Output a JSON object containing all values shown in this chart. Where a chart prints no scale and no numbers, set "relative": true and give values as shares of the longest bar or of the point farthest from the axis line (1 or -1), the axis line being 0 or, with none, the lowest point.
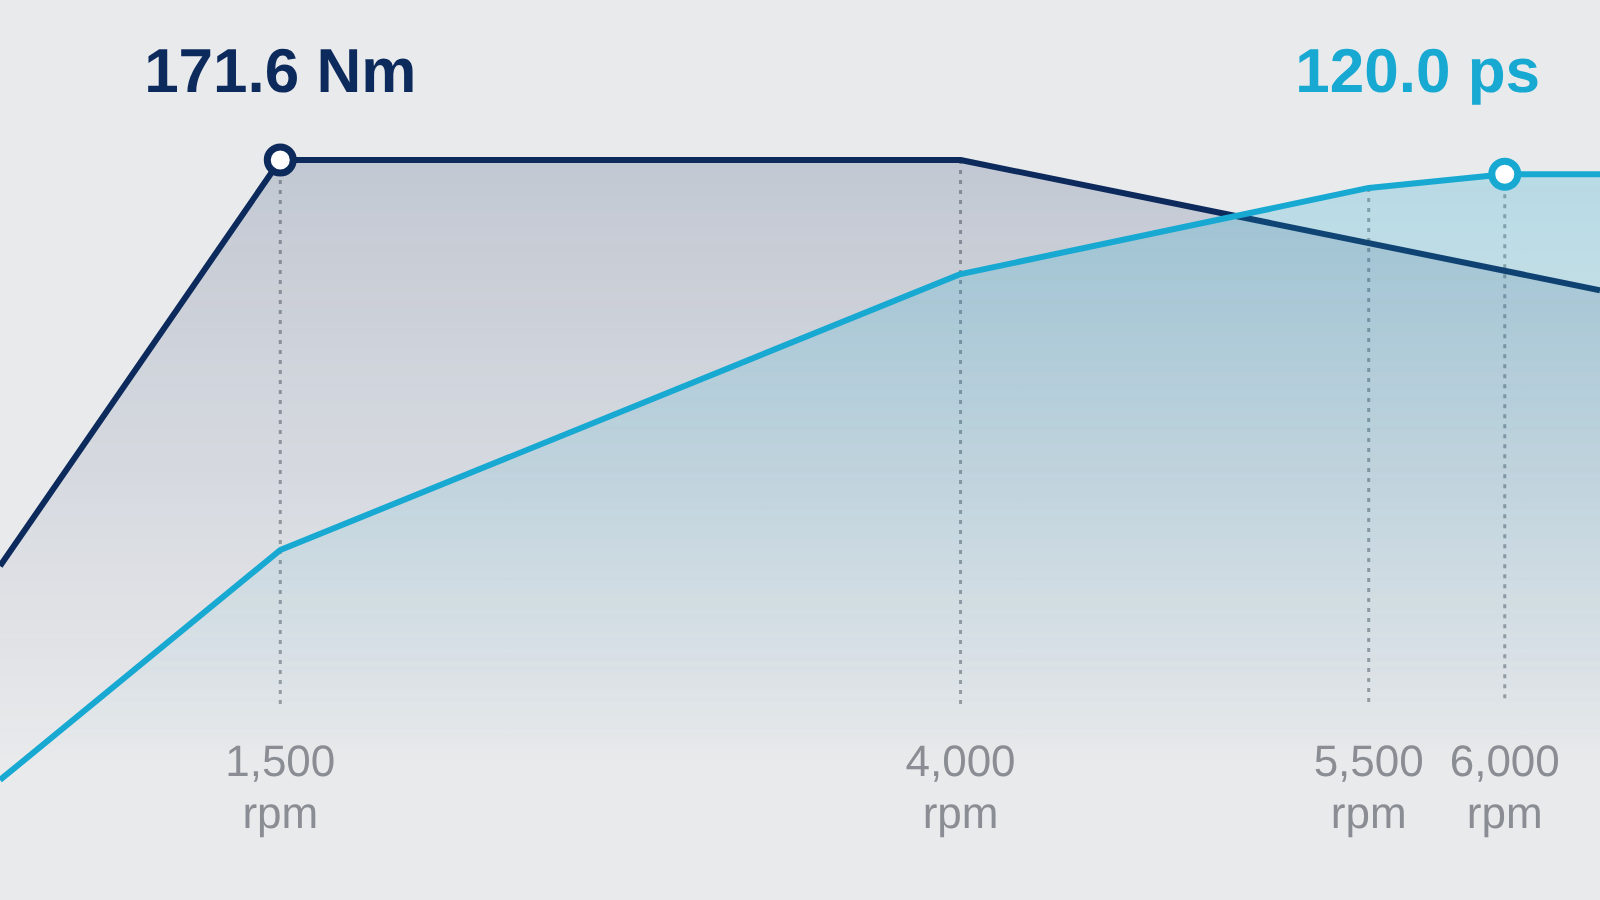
{
  "chart_data": {
    "type": "area",
    "relative": true,
    "xlim": [
      470,
      6350
    ],
    "xticks": [
      {
        "value": 1500,
        "label": "1,500\nrpm"
      },
      {
        "value": 4000,
        "label": "4,000\nrpm"
      },
      {
        "value": 5500,
        "label": "5,500\nrpm"
      },
      {
        "value": 6000,
        "label": "6,000\nrpm"
      }
    ],
    "grid": "x",
    "series": [
      {
        "color": "#0d2a5c",
        "x": [
          470,
          1500,
          4000,
          6350
        ],
        "values": [
          0.345,
          1,
          1,
          0.79
        ]
      },
      {
        "color": "#17a9d1",
        "x": [
          470,
          1500,
          4000,
          5500,
          6000,
          6350
        ],
        "values": [
          0,
          0.371,
          0.816,
          0.955,
          0.977,
          0.977
        ]
      }
    ],
    "annotations": [
      {
        "text": "171.6 Nm",
        "x": 1500,
        "y": 1
      },
      {
        "text": "120.0 ps",
        "x": 6000,
        "y": 0.977
      }
    ]
  }
}
